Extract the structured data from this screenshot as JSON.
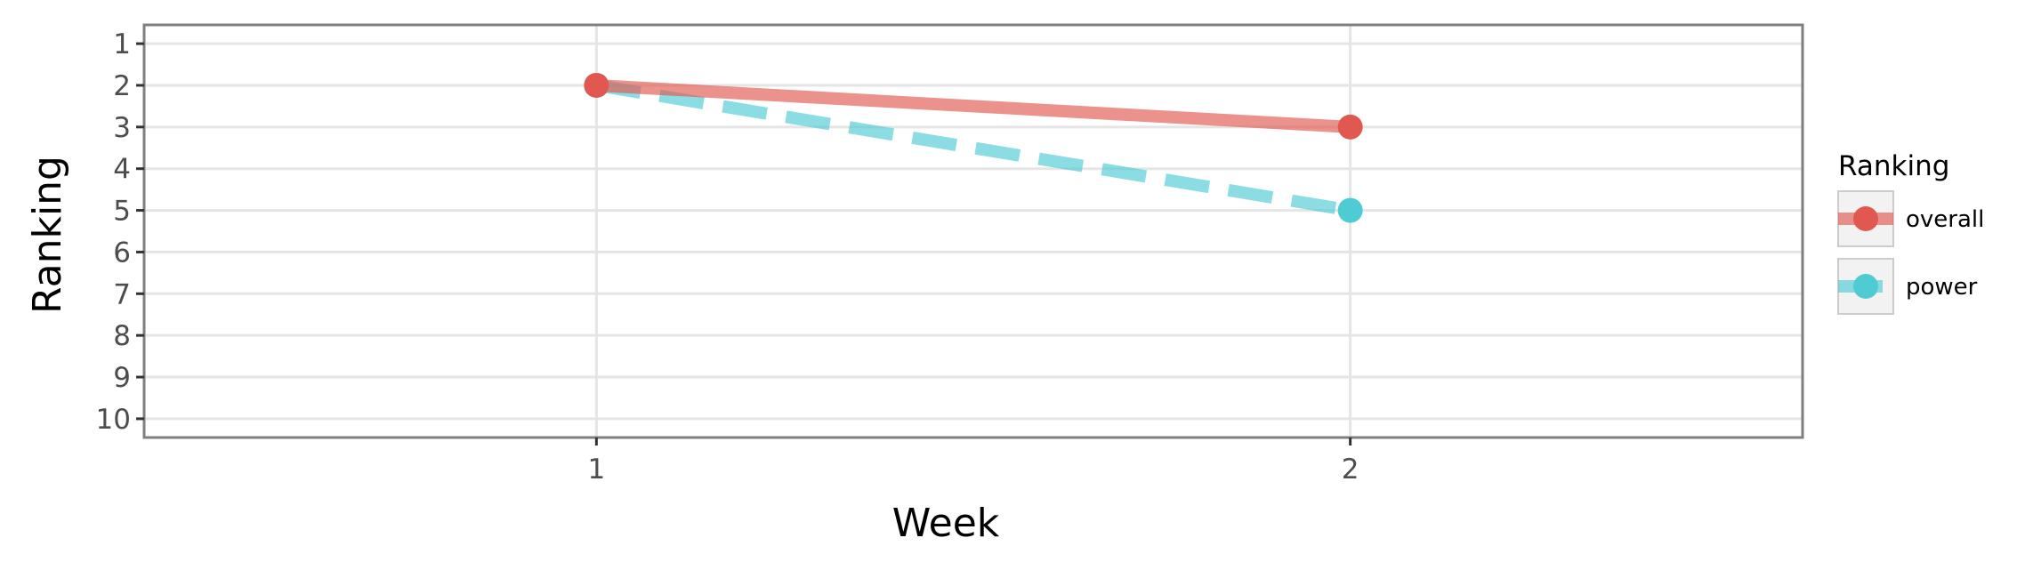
{
  "chart_data": {
    "type": "line",
    "xlabel": "Week",
    "ylabel": "Ranking",
    "x": [
      1,
      2
    ],
    "x_ticks": [
      "1",
      "2"
    ],
    "xlim": [
      0.4,
      2.6
    ],
    "y_ticks": [
      "1",
      "2",
      "3",
      "4",
      "5",
      "6",
      "7",
      "8",
      "9",
      "10"
    ],
    "ylim": [
      0.55,
      10.45
    ],
    "y_reversed": true,
    "grid": true,
    "legend": {
      "title": "Ranking",
      "position": "right"
    },
    "series": [
      {
        "name": "overall",
        "values": [
          2,
          3
        ],
        "color": "#e0584f",
        "line_style": "solid"
      },
      {
        "name": "power",
        "values": [
          2,
          5
        ],
        "color": "#4fcbd4",
        "line_style": "dashed"
      }
    ]
  }
}
